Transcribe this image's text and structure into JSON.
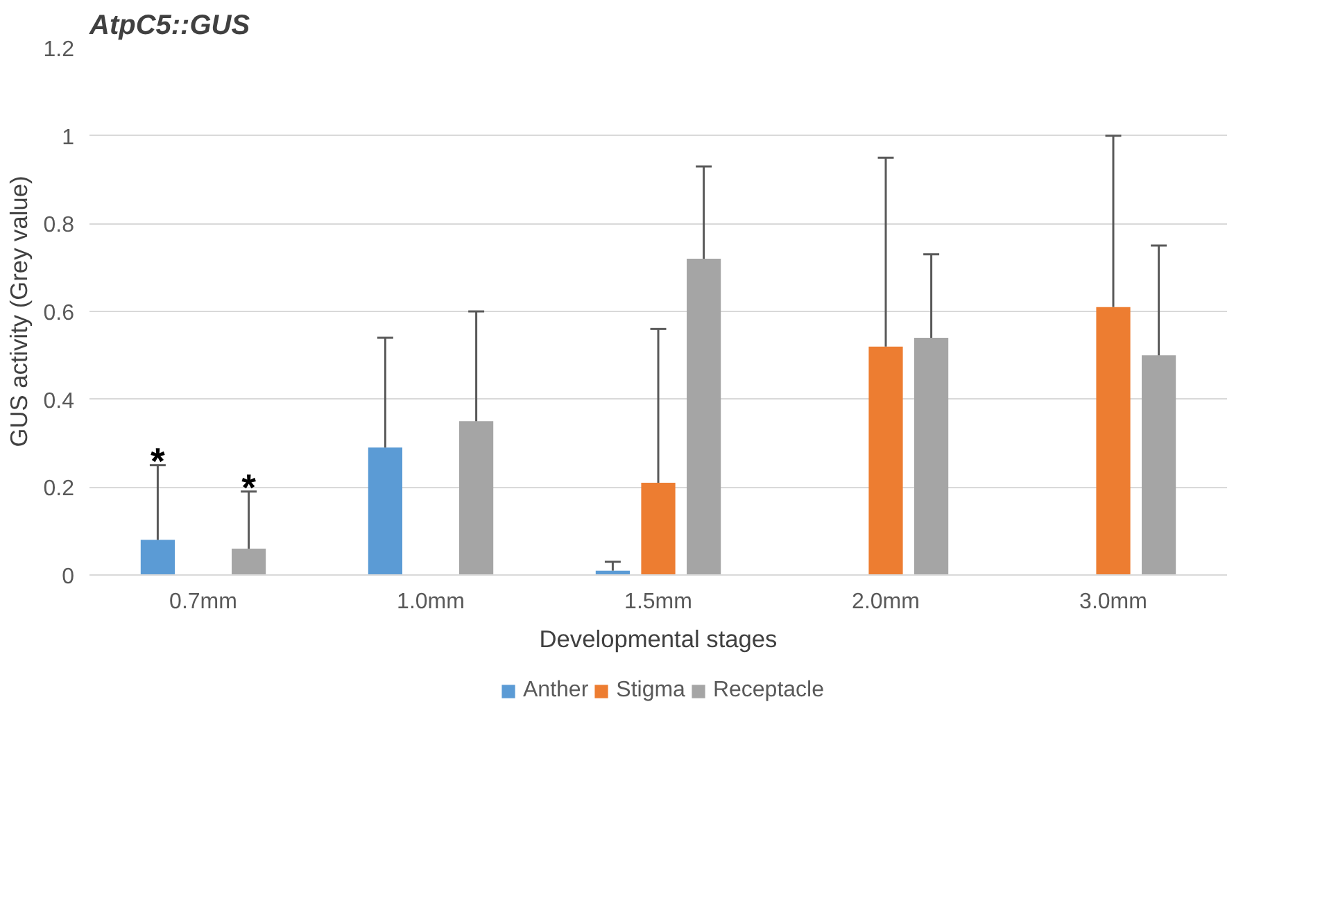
{
  "chart_data": {
    "type": "bar",
    "title": "AtpC5::GUS",
    "xlabel": "Developmental stages",
    "ylabel": "GUS activity (Grey value)",
    "categories": [
      "0.7mm",
      "1.0mm",
      "1.5mm",
      "2.0mm",
      "3.0mm"
    ],
    "series": [
      {
        "name": "Anther",
        "color": "#5b9bd5",
        "values": [
          0.08,
          0.29,
          0.01,
          null,
          null
        ],
        "errors": [
          [
            0.08,
            0.25
          ],
          [
            0.29,
            0.54
          ],
          [
            0.01,
            0.03
          ],
          null,
          null
        ]
      },
      {
        "name": "Stigma",
        "color": "#ed7d31",
        "values": [
          null,
          null,
          0.21,
          0.52,
          0.61
        ],
        "errors": [
          null,
          null,
          [
            0.21,
            0.56
          ],
          [
            0.52,
            0.95
          ],
          [
            0.61,
            1.0
          ]
        ]
      },
      {
        "name": "Receptacle",
        "color": "#a5a5a5",
        "values": [
          0.06,
          0.35,
          0.72,
          0.54,
          0.5
        ],
        "errors": [
          [
            0.06,
            0.19
          ],
          [
            0.35,
            0.6
          ],
          [
            0.72,
            0.93
          ],
          [
            0.54,
            0.73
          ],
          [
            0.5,
            0.75
          ]
        ]
      }
    ],
    "ylim": [
      0,
      1.2
    ],
    "yticks": [
      0,
      0.2,
      0.4,
      0.6,
      0.8,
      1,
      1.2
    ],
    "grid": "y",
    "legend": "bottom",
    "annotations": [
      "*",
      "*"
    ]
  }
}
